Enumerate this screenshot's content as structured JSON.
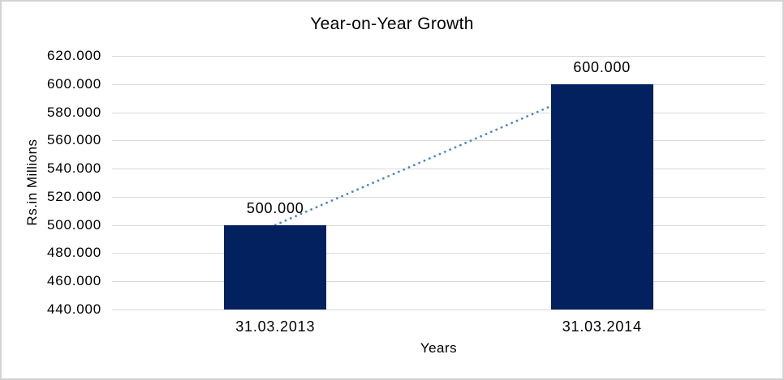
{
  "window": {
    "background": "#FFFFFF",
    "border_color": "#D3D3D3"
  },
  "chart_data": {
    "type": "bar",
    "title": "Year-on-Year Growth",
    "xlabel": "Years",
    "ylabel": "Rs.in Millions",
    "categories": [
      "31.03.2013",
      "31.03.2014"
    ],
    "values": [
      500,
      600
    ],
    "data_labels": [
      "500.000",
      "600.000"
    ],
    "ylim": [
      440,
      620
    ],
    "ytick_step": 20,
    "ytick_labels": [
      "440.000",
      "460.000",
      "480.000",
      "500.000",
      "520.000",
      "540.000",
      "560.000",
      "580.000",
      "600.000",
      "620.000"
    ],
    "grid": true,
    "legend_position": "none",
    "bar_color": "#02215E",
    "gridline_color": "#D9D9D9",
    "text_color": "#000000",
    "trendline": {
      "type": "linear",
      "style": "dotted",
      "color": "#4F86C6"
    }
  }
}
